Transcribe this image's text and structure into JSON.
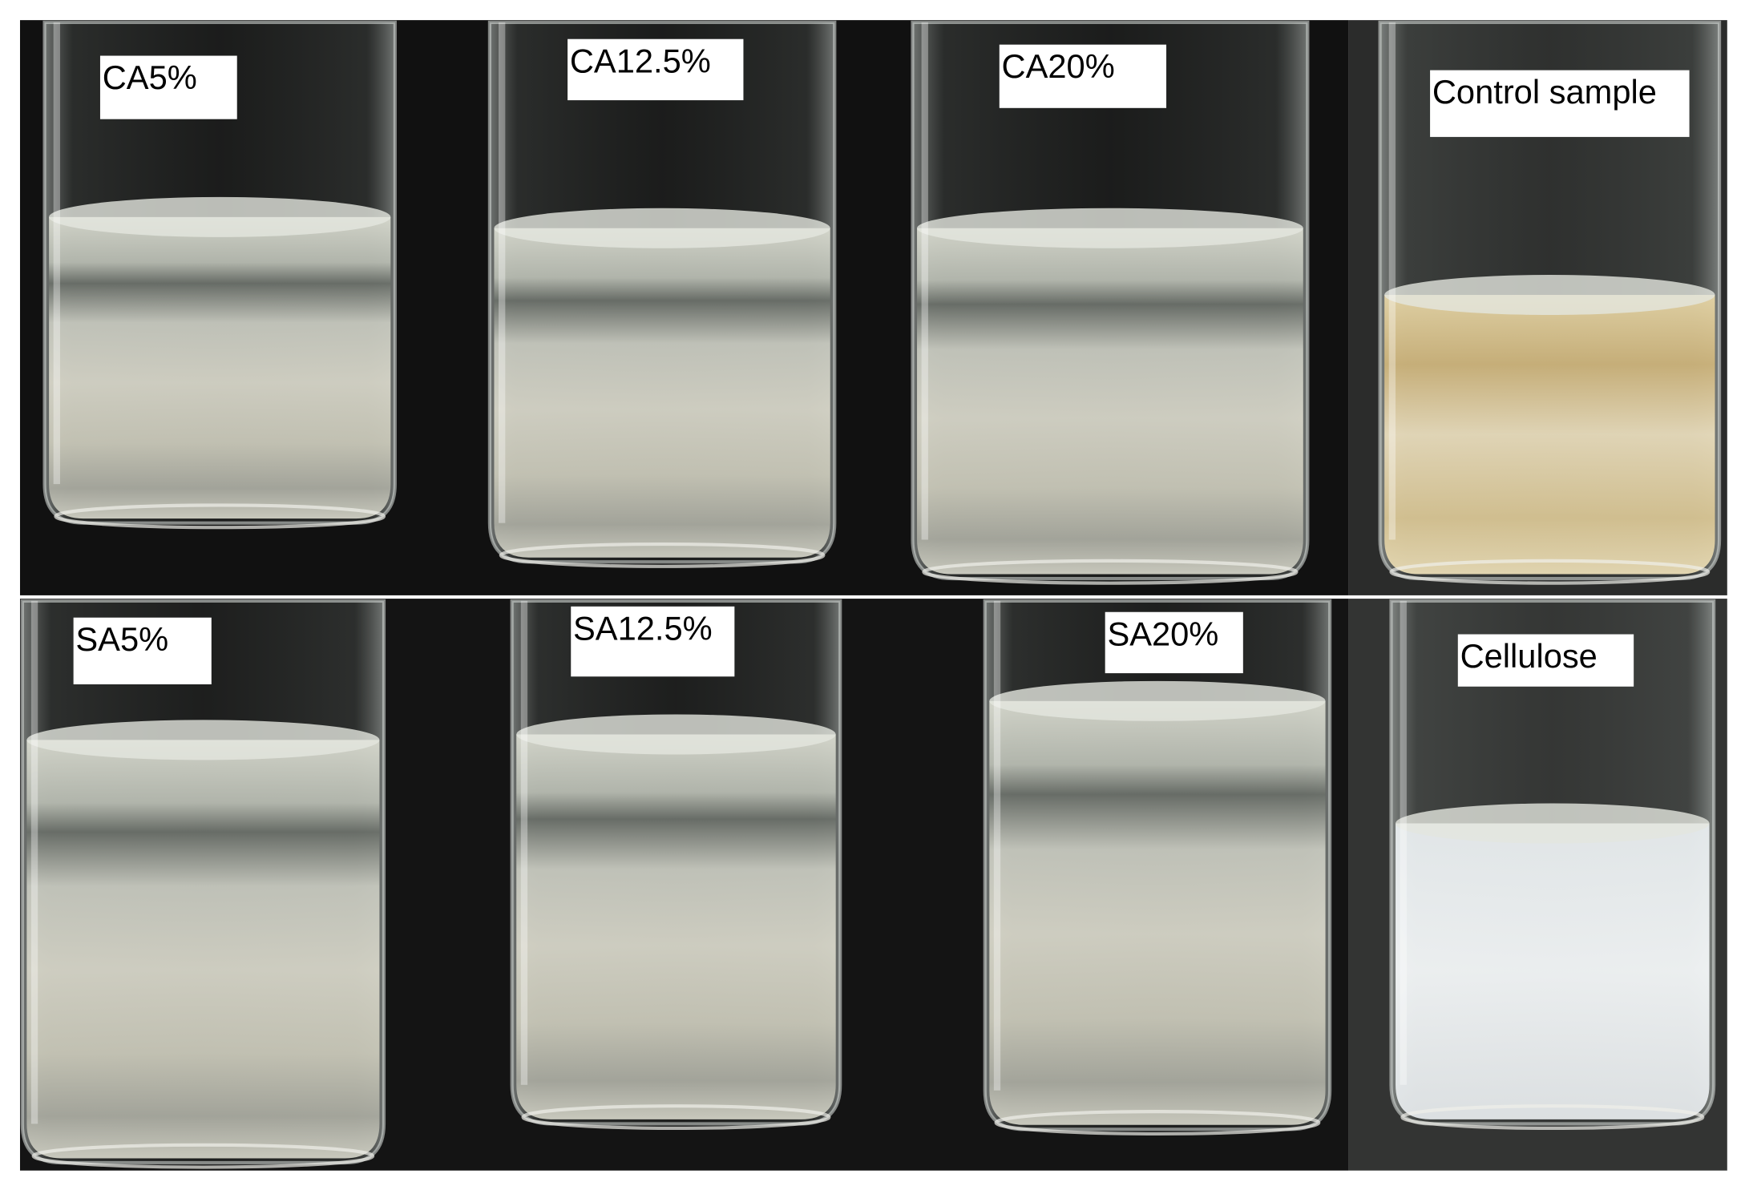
{
  "panels": [
    {
      "label": "CA5%"
    },
    {
      "label": "CA12.5%"
    },
    {
      "label": "CA20%"
    },
    {
      "label": "Control sample"
    },
    {
      "label": "SA5%"
    },
    {
      "label": "SA12.5%"
    },
    {
      "label": "SA20%"
    },
    {
      "label": "Cellulose"
    }
  ]
}
